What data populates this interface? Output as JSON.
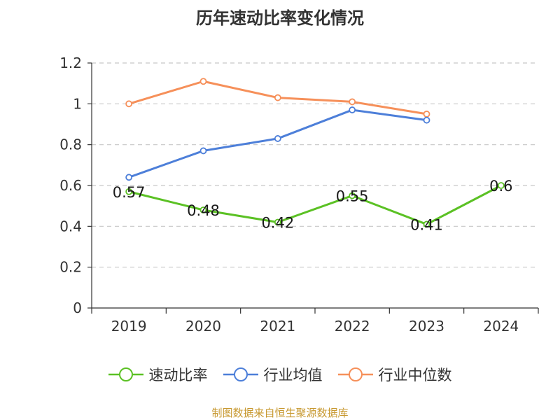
{
  "title": "历年速动比率变化情况",
  "source": "制图数据来自恒生聚源数据库",
  "chart_data": {
    "type": "line",
    "title": "历年速动比率变化情况",
    "categories": [
      "2019",
      "2020",
      "2021",
      "2022",
      "2023",
      "2024"
    ],
    "ylim": [
      0,
      1.2
    ],
    "yticks": [
      0,
      0.2,
      0.4,
      0.6,
      0.8,
      1,
      1.2
    ],
    "ytick_labels": [
      "0",
      "0.2",
      "0.4",
      "0.6",
      "0.8",
      "1",
      "1.2"
    ],
    "grid": true,
    "legend_position": "bottom",
    "series": [
      {
        "name": "速动比率",
        "color": "#5bc124",
        "values": [
          0.57,
          0.48,
          0.42,
          0.55,
          0.41,
          0.6
        ],
        "labels": [
          "0.57",
          "0.48",
          "0.42",
          "0.55",
          "0.41",
          "0.6"
        ]
      },
      {
        "name": "行业均值",
        "color": "#4d7fd9",
        "values": [
          0.64,
          0.77,
          0.83,
          0.97,
          0.92,
          null
        ],
        "labels": []
      },
      {
        "name": "行业中位数",
        "color": "#f6905a",
        "values": [
          1.0,
          1.11,
          1.03,
          1.01,
          0.95,
          null
        ],
        "labels": []
      }
    ]
  }
}
